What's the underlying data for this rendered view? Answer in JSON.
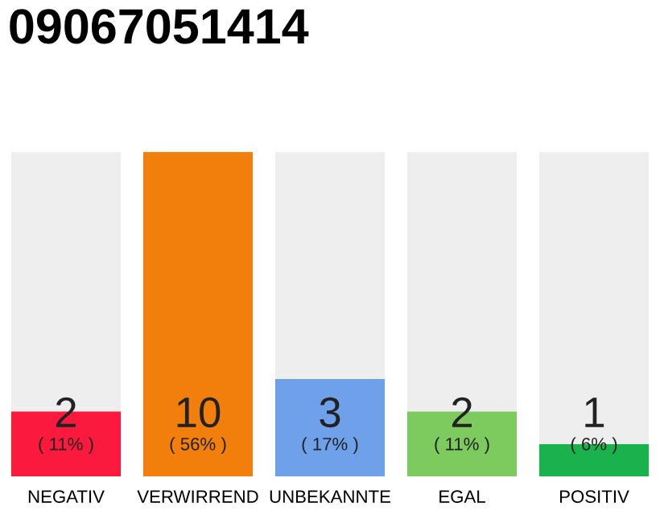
{
  "chart_data": {
    "type": "bar",
    "title": "09067051414",
    "categories": [
      "NEGATIV",
      "VERWIRREND",
      "UNBEKANNTE",
      "EGAL",
      "POSITIV"
    ],
    "stacked": true,
    "series": [
      {
        "colors": [
          "#fb1a3e",
          "#f27f0c",
          "#6ea1ea",
          "#7dca5f",
          "#19b24c"
        ],
        "values": [
          2,
          10,
          3,
          2,
          1
        ],
        "value_labels": [
          "2",
          "10",
          "3",
          "2",
          "1"
        ]
      },
      {
        "color": "#eeeeee",
        "values": [
          8,
          0,
          7,
          8,
          9
        ]
      }
    ],
    "annotations": [
      "( 11% )",
      "( 56% )",
      "( 17% )",
      "( 11% )",
      "( 6% )"
    ],
    "grid": false,
    "legend": false
  }
}
